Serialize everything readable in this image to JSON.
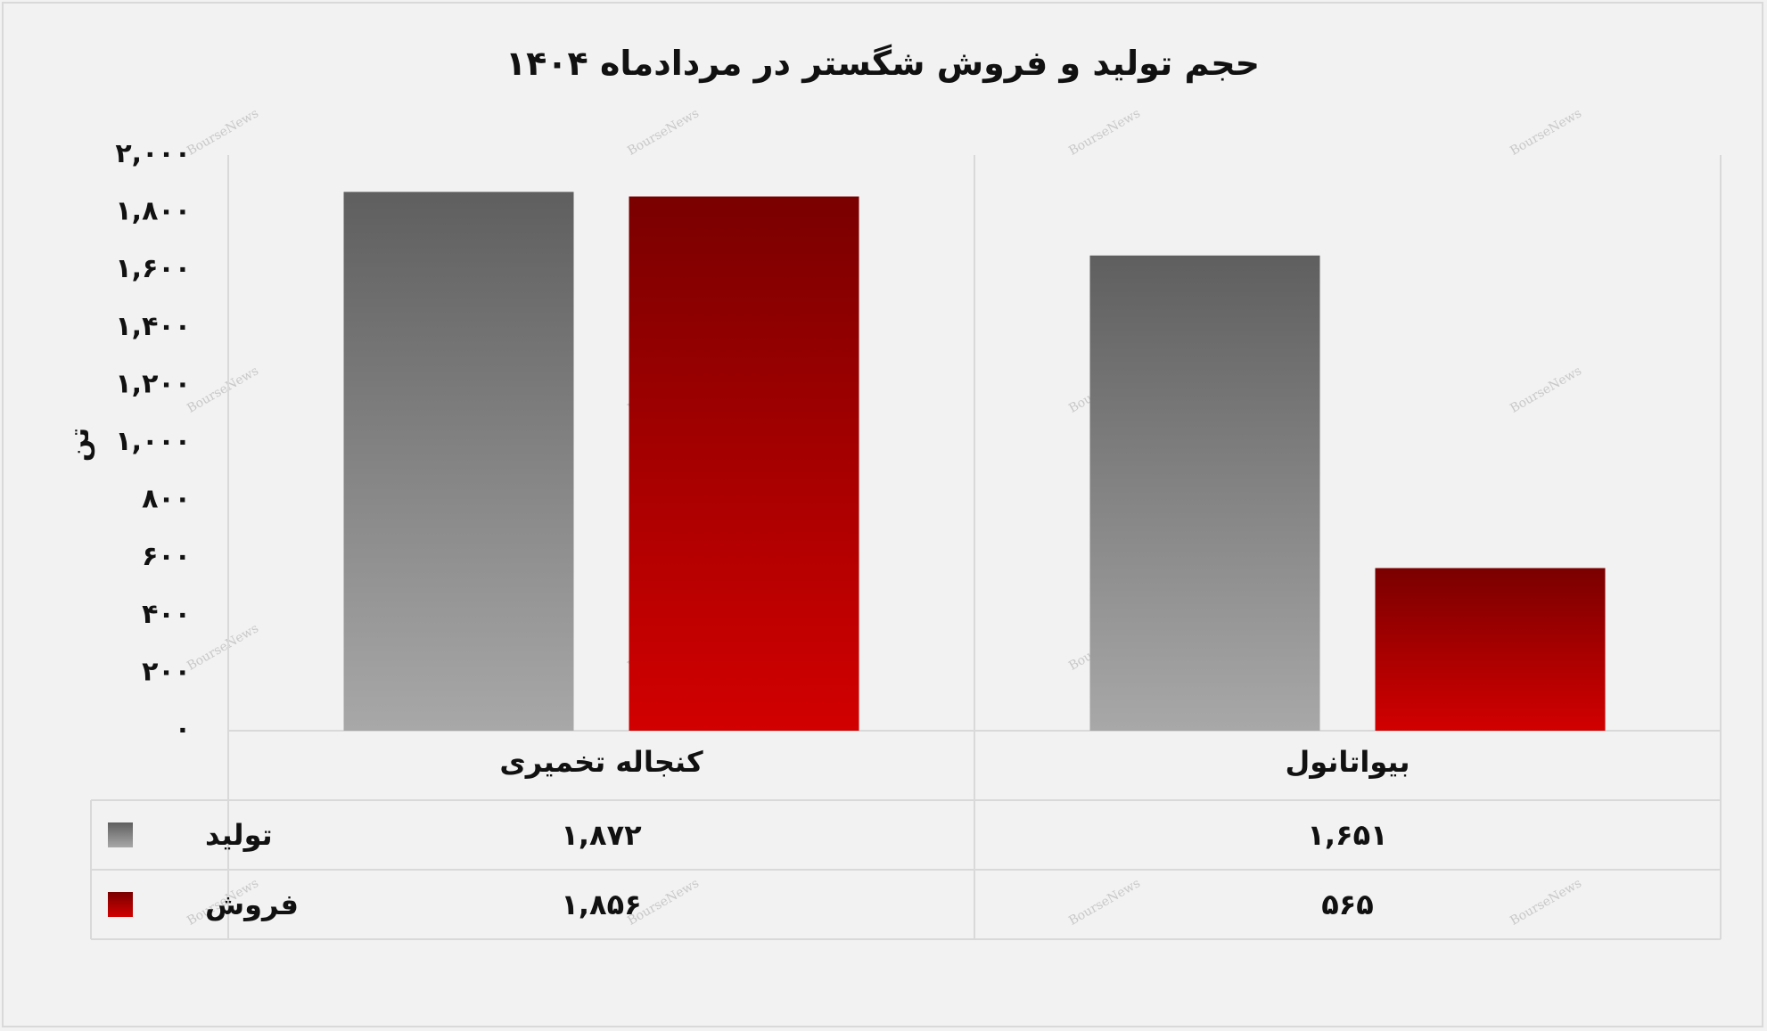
{
  "chart_data": {
    "type": "bar",
    "title": "حجم تولید و فروش شگستر در مردادماه ۱۴۰۴",
    "ylabel": "تن",
    "xlabel": "",
    "categories": [
      "بیواتانول",
      "کنجاله تخمیری"
    ],
    "series": [
      {
        "name": "تولید",
        "values": [
          1651,
          1872
        ],
        "color": "#7f7f7f",
        "grad_top": "#5f5f5f",
        "grad_bottom": "#a8a8a8",
        "labels": [
          "۱,۶۵۱",
          "۱,۸۷۲"
        ]
      },
      {
        "name": "فروش",
        "values": [
          565,
          1856
        ],
        "color": "#c00000",
        "grad_top": "#7a0000",
        "grad_bottom": "#d20000",
        "labels": [
          "۵۶۵",
          "۱,۸۵۶"
        ]
      }
    ],
    "ylim": [
      0,
      2000
    ],
    "yticks": [
      0,
      200,
      400,
      600,
      800,
      1000,
      1200,
      1400,
      1600,
      1800,
      2000
    ],
    "ytick_labels": [
      "۰",
      "۲۰۰",
      "۴۰۰",
      "۶۰۰",
      "۸۰۰",
      "۱,۰۰۰",
      "۱,۲۰۰",
      "۱,۴۰۰",
      "۱,۶۰۰",
      "۱,۸۰۰",
      "۲,۰۰۰"
    ],
    "grid": false,
    "legend": "data-table",
    "bar_order": "right-to-left"
  },
  "watermark": "BourseNews"
}
